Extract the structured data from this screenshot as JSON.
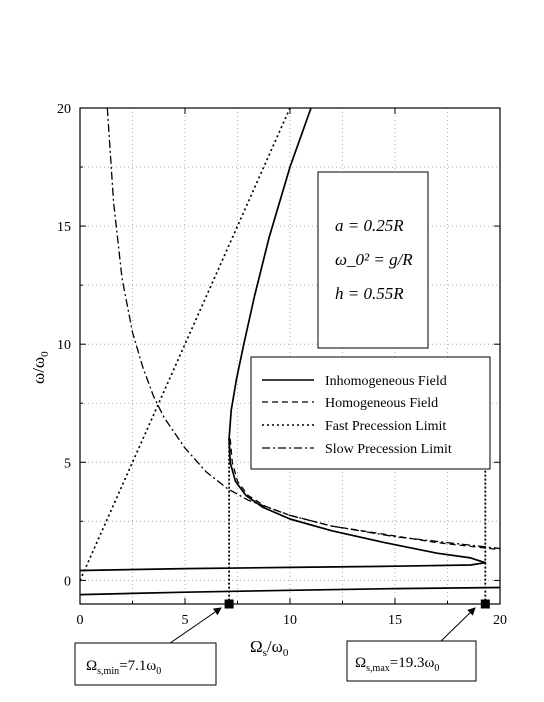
{
  "chart_data": {
    "type": "line",
    "title": "",
    "xlabel": "Ω_s/ω_0",
    "ylabel": "ω/ω_0",
    "xlim": [
      0,
      20
    ],
    "ylim": [
      -1,
      20
    ],
    "x_ticks": [
      "0",
      "5",
      "10",
      "15",
      "20"
    ],
    "y_ticks": [
      "0",
      "5",
      "10",
      "15",
      "20"
    ],
    "grid": true,
    "legend_position": "center-right",
    "parameters": [
      "a = 0.25R",
      "ω_0² = g/R",
      "h = 0.55R"
    ],
    "series": [
      {
        "name": "Inhomogeneous Field",
        "style": "solid",
        "x": [
          11.0,
          10.0,
          9.0,
          8.3,
          7.8,
          7.45,
          7.2,
          7.1,
          7.15,
          7.4,
          7.9,
          8.7,
          10.0,
          12.0,
          14.5,
          17.0,
          18.6,
          19.3,
          18.6,
          15.0,
          10.0,
          5.0,
          0.0
        ],
        "y": [
          20.0,
          17.5,
          14.5,
          12.0,
          10.0,
          8.5,
          7.2,
          6.0,
          5.0,
          4.2,
          3.6,
          3.1,
          2.6,
          2.1,
          1.6,
          1.15,
          0.95,
          0.75,
          0.65,
          0.6,
          0.55,
          0.5,
          0.42
        ]
      },
      {
        "name": "Homogeneous Field",
        "style": "dashed",
        "x": [
          7.15,
          7.25,
          7.5,
          8.0,
          8.8,
          10.0,
          12.0,
          14.5,
          17.0,
          19.0,
          20.0
        ],
        "y": [
          6.0,
          5.0,
          4.2,
          3.6,
          3.15,
          2.75,
          2.3,
          1.95,
          1.6,
          1.4,
          1.3
        ]
      },
      {
        "name": "Fast Precession Limit",
        "style": "dotted",
        "x": [
          0.0,
          2.0,
          4.0,
          6.0,
          8.0,
          10.0
        ],
        "y": [
          0.0,
          4.0,
          8.0,
          12.0,
          16.0,
          20.0
        ]
      },
      {
        "name": "Slow Precession Limit",
        "style": "dashdot",
        "x": [
          1.3,
          1.6,
          2.0,
          2.5,
          3.0,
          3.5,
          4.0,
          5.0,
          6.0,
          7.0,
          8.0,
          10.0,
          12.0,
          15.0,
          18.0,
          20.0
        ],
        "y": [
          20.0,
          16.0,
          12.8,
          10.5,
          9.0,
          7.8,
          6.9,
          5.6,
          4.6,
          3.9,
          3.4,
          2.75,
          2.3,
          1.85,
          1.55,
          1.35
        ]
      }
    ],
    "lower_branch": {
      "x": [
        0.0,
        5.0,
        10.0,
        15.0,
        20.0
      ],
      "y": [
        -0.6,
        -0.5,
        -0.42,
        -0.35,
        -0.3
      ]
    },
    "markers": [
      {
        "x": 7.1,
        "label": "Ω_s,min=7.1ω_0"
      },
      {
        "x": 19.3,
        "label": "Ω_s,max=19.3ω_0"
      }
    ]
  }
}
